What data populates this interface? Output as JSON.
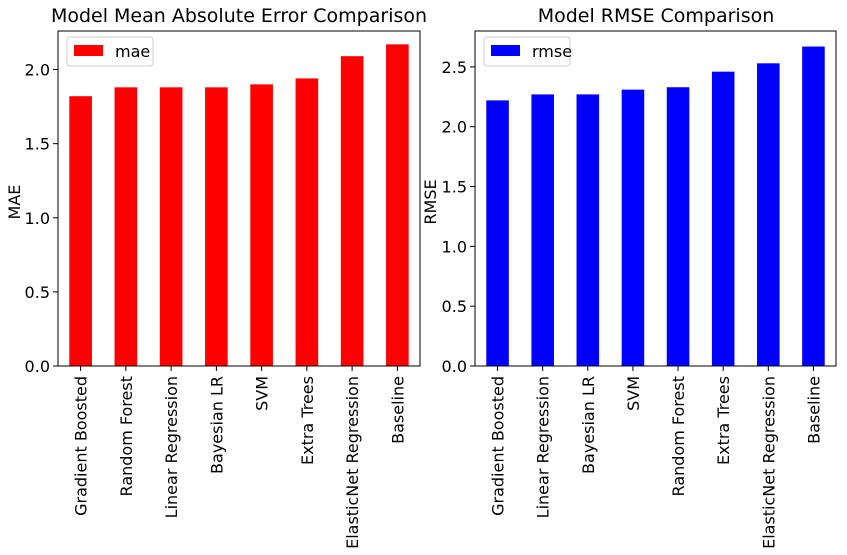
{
  "chart_data": [
    {
      "type": "bar",
      "title": "Model Mean Absolute Error Comparison",
      "xlabel": "",
      "ylabel": "MAE",
      "categories": [
        "Gradient Boosted",
        "Random Forest",
        "Linear Regression",
        "Bayesian LR",
        "SVM",
        "Extra Trees",
        "ElasticNet Regression",
        "Baseline"
      ],
      "series": [
        {
          "name": "mae",
          "values": [
            1.82,
            1.88,
            1.88,
            1.88,
            1.9,
            1.94,
            2.09,
            2.17
          ],
          "color": "#ff0000"
        }
      ],
      "ylim": [
        0,
        2.26
      ],
      "yticks": [
        "0.0",
        "0.5",
        "1.0",
        "1.5",
        "2.0"
      ],
      "grid": false,
      "legend": "top-left"
    },
    {
      "type": "bar",
      "title": "Model RMSE Comparison",
      "xlabel": "",
      "ylabel": "RMSE",
      "categories": [
        "Gradient Boosted",
        "Linear Regression",
        "Bayesian LR",
        "SVM",
        "Random Forest",
        "Extra Trees",
        "ElasticNet Regression",
        "Baseline"
      ],
      "series": [
        {
          "name": "rmse",
          "values": [
            2.22,
            2.27,
            2.27,
            2.31,
            2.33,
            2.46,
            2.53,
            2.67
          ],
          "color": "#0000ff"
        }
      ],
      "ylim": [
        0,
        2.8
      ],
      "yticks": [
        "0.0",
        "0.5",
        "1.0",
        "1.5",
        "2.0",
        "2.5"
      ],
      "grid": false,
      "legend": "top-left"
    }
  ]
}
